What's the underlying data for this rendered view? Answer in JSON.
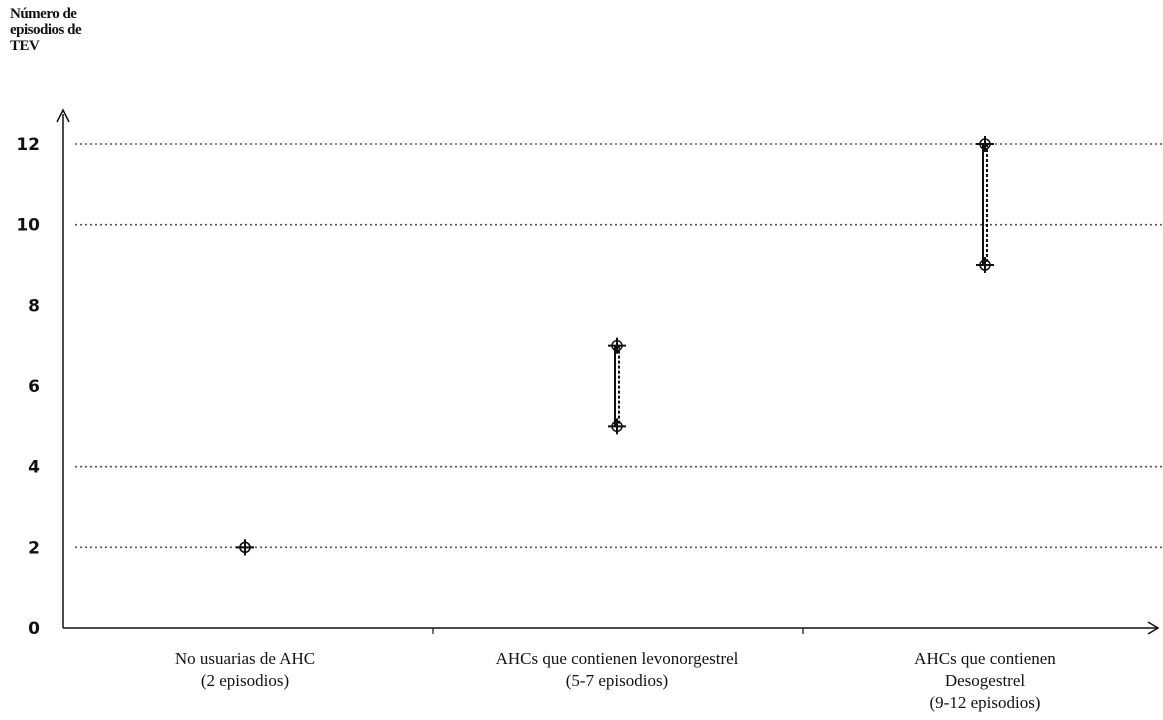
{
  "chart_data": {
    "type": "range",
    "ylabel_lines": [
      "Número de",
      "episodios de",
      "TEV"
    ],
    "ylim": [
      0,
      13
    ],
    "yticks": [
      {
        "value": 0,
        "label": "0"
      },
      {
        "value": 2,
        "label": "2"
      },
      {
        "value": 4,
        "label": "4"
      },
      {
        "value": 6,
        "label": "6"
      },
      {
        "value": 8,
        "label": "8"
      },
      {
        "value": 10,
        "label": "10"
      },
      {
        "value": 12,
        "label": "12"
      }
    ],
    "gridlines": [
      2,
      4,
      10,
      12
    ],
    "grid": "horizontal-dotted",
    "series": [
      {
        "label_lines": [
          "No usuarias de AHC",
          "(2 episodios)"
        ],
        "low": 2,
        "high": 2
      },
      {
        "label_lines": [
          "AHCs que contienen levonorgestrel",
          "(5-7 episodios)"
        ],
        "low": 5,
        "high": 7
      },
      {
        "label_lines": [
          "AHCs que contienen",
          "Desogestrel",
          "(9-12 episodios)"
        ],
        "low": 9,
        "high": 12
      }
    ]
  }
}
